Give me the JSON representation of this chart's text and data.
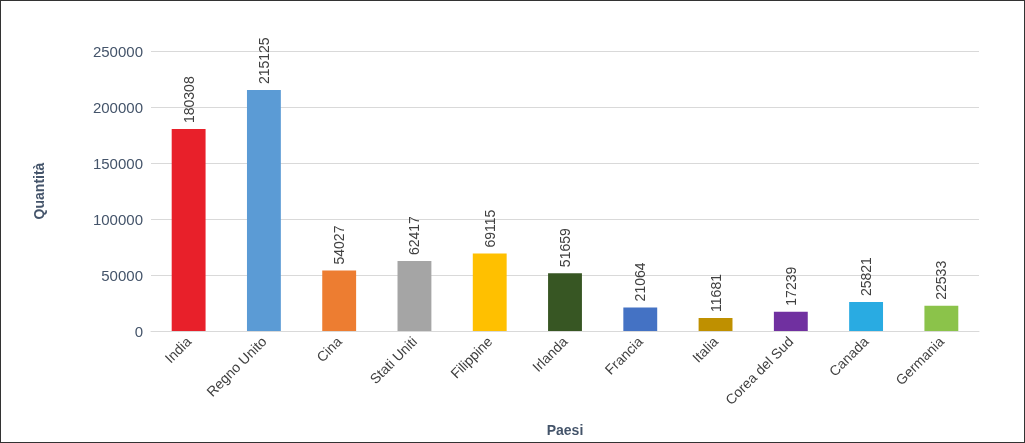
{
  "chart_data": {
    "type": "bar",
    "xlabel": "Paesi",
    "ylabel": "Quantità",
    "categories": [
      "India",
      "Regno Unito",
      "Cina",
      "Stati Uniti",
      "Filippine",
      "Irlanda",
      "Francia",
      "Italia",
      "Corea del Sud",
      "Canada",
      "Germania"
    ],
    "values": [
      180308,
      215125,
      54027,
      62417,
      69115,
      51659,
      21064,
      11681,
      17239,
      25821,
      22533
    ],
    "colors": [
      "#e8202a",
      "#5b9bd5",
      "#ed7d31",
      "#a5a5a5",
      "#ffc000",
      "#375623",
      "#4472c4",
      "#bf9000",
      "#7030a0",
      "#29abe2",
      "#8bc34a"
    ],
    "ylim": [
      0,
      250000
    ],
    "yticks": [
      0,
      50000,
      100000,
      150000,
      200000,
      250000
    ],
    "grid": "y",
    "data_labels": true
  }
}
